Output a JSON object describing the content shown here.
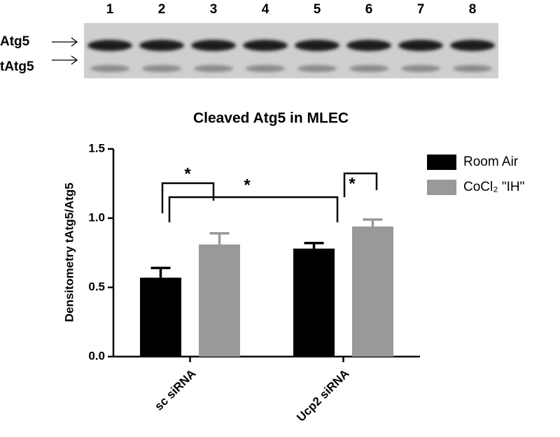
{
  "blot": {
    "lanes": [
      "1",
      "2",
      "3",
      "4",
      "5",
      "6",
      "7",
      "8"
    ],
    "band_labels": [
      "Atg5",
      "tAtg5"
    ]
  },
  "chart_data": {
    "type": "bar",
    "title": "Cleaved Atg5 in MLEC",
    "y_label": "Densitometry tAtg5/Atg5",
    "categories": [
      "sc siRNA",
      "Ucp2 siRNA"
    ],
    "series": [
      {
        "name": "Room Air",
        "color": "#000000",
        "values": [
          0.57,
          0.78
        ],
        "errors": [
          0.07,
          0.04
        ]
      },
      {
        "name": "CoCl₂ \"IH\"",
        "color": "#999999",
        "values": [
          0.81,
          0.94
        ],
        "errors": [
          0.08,
          0.05
        ]
      }
    ],
    "ylim": [
      0,
      1.5
    ],
    "yticks": [
      {
        "value": 0,
        "label": "0.0"
      },
      0.5,
      {
        "value": 1,
        "label": "1.0"
      },
      {
        "value": 1.5,
        "label": "1.5"
      }
    ],
    "annotations": [
      "*",
      "*",
      "*"
    ],
    "legend": "right"
  }
}
